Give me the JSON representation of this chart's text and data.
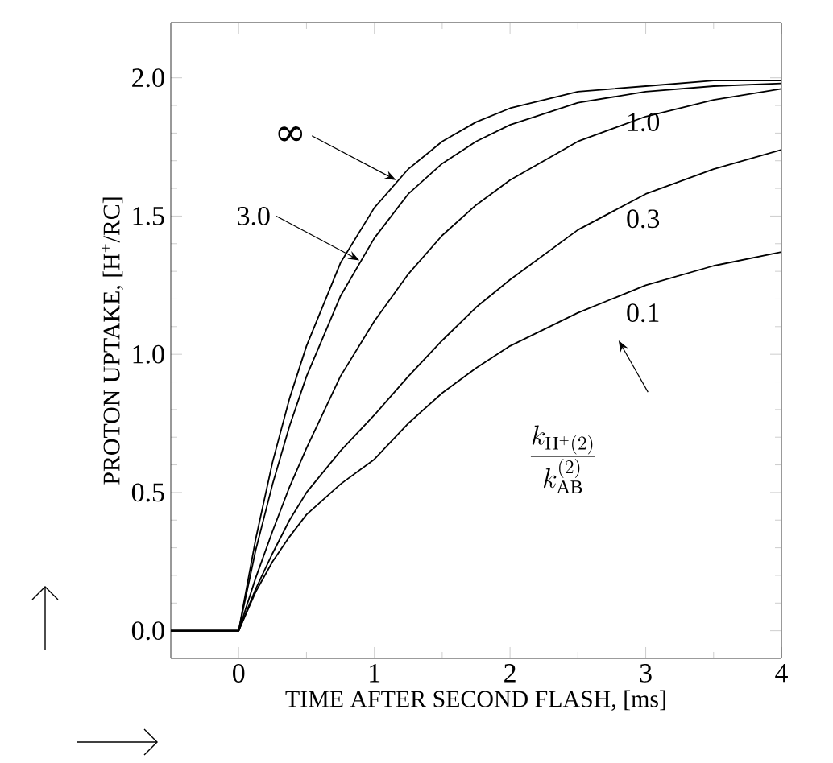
{
  "chart_data": {
    "type": "line",
    "xlabel": "TIME AFTER SECOND FLASH, [ms]",
    "ylabel": "PROTON UPTAKE, [H$^{+}$/RC]",
    "x": [
      -0.5,
      0,
      0.125,
      0.25,
      0.375,
      0.5,
      0.75,
      1,
      1.25,
      1.5,
      1.75,
      2,
      2.5,
      3,
      3.5,
      4
    ],
    "series": [
      {
        "color": "#000000",
        "values": [
          0,
          0,
          0.33,
          0.61,
          0.84,
          1.03,
          1.33,
          1.53,
          1.67,
          1.77,
          1.84,
          1.89,
          1.95,
          1.97,
          1.99,
          1.99
        ]
      },
      {
        "color": "#000000",
        "values": [
          0,
          0,
          0.29,
          0.53,
          0.74,
          0.92,
          1.21,
          1.42,
          1.58,
          1.69,
          1.77,
          1.83,
          1.91,
          1.95,
          1.97,
          1.98
        ]
      },
      {
        "color": "#000000",
        "values": [
          0,
          0,
          0.19,
          0.36,
          0.52,
          0.66,
          0.92,
          1.12,
          1.29,
          1.43,
          1.54,
          1.63,
          1.77,
          1.86,
          1.92,
          1.96
        ]
      },
      {
        "color": "#000000",
        "values": [
          0,
          0,
          0.15,
          0.28,
          0.4,
          0.5,
          0.65,
          0.78,
          0.92,
          1.05,
          1.17,
          1.27,
          1.45,
          1.58,
          1.67,
          1.74
        ]
      },
      {
        "color": "#000000",
        "values": [
          0,
          0,
          0.14,
          0.25,
          0.34,
          0.42,
          0.53,
          0.62,
          0.75,
          0.86,
          0.95,
          1.03,
          1.15,
          1.25,
          1.32,
          1.37
        ]
      }
    ],
    "xlim": [
      -0.5,
      4
    ],
    "ylim": [
      -0.1,
      2.2
    ],
    "xticks": [
      0,
      1,
      2,
      3,
      4
    ],
    "yticks": [
      {
        "value": 0,
        "label": "0.0"
      },
      {
        "value": 0.5,
        "label": "0.5"
      },
      {
        "value": 1,
        "label": "1.0"
      },
      {
        "value": 1.5,
        "label": "1.5"
      },
      {
        "value": 2,
        "label": "2.0"
      }
    ],
    "grid": false,
    "marker": "none",
    "line_style": "solid",
    "annotations": [
      {
        "text": "∞",
        "x": 1.16,
        "y": 1.63
      },
      {
        "text": "3.0",
        "x": 0.89,
        "y": 1.34
      },
      "1.0",
      "0.3",
      "0.1",
      "\\frac{k_{\\mathrm{H}^{+}(2)}}{k_{\\mathrm{AB}}^{(2)}}"
    ]
  }
}
